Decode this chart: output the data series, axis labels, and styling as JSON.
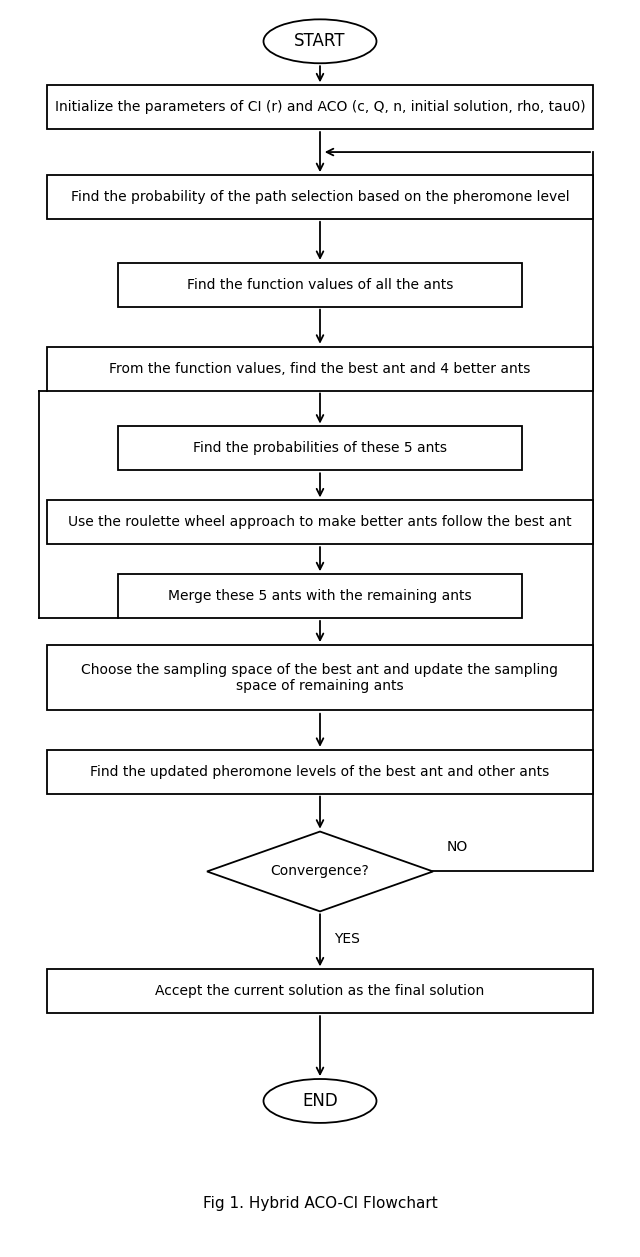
{
  "title": "Fig 1. Hybrid ACO-CI Flowchart",
  "bg_color": "#ffffff",
  "figsize": [
    6.4,
    12.57
  ],
  "dpi": 100,
  "nodes": [
    {
      "id": "start",
      "label": "START",
      "type": "ellipse"
    },
    {
      "id": "init",
      "label": "Initialize the parameters of CI (r) and ACO (c, Q, n, initial solution, rho, tau0)",
      "type": "rect_wide"
    },
    {
      "id": "prob",
      "label": "Find the probability of the path selection based on the pheromone level",
      "type": "rect_wide"
    },
    {
      "id": "func",
      "label": "Find the function values of all the ants",
      "type": "rect_mid"
    },
    {
      "id": "best",
      "label": "From the function values, find the best ant and 4 better ants",
      "type": "rect_wide"
    },
    {
      "id": "prob5",
      "label": "Find the probabilities of these 5 ants",
      "type": "rect_mid"
    },
    {
      "id": "roulette",
      "label": "Use the roulette wheel approach to make better ants follow the best ant",
      "type": "rect_wide"
    },
    {
      "id": "merge",
      "label": "Merge these 5 ants with the remaining ants",
      "type": "rect_mid"
    },
    {
      "id": "sample",
      "label": "Choose the sampling space of the best ant and update the sampling\nspace of remaining ants",
      "type": "rect_wide"
    },
    {
      "id": "pheromone",
      "label": "Find the updated pheromone levels of the best ant and other ants",
      "type": "rect_wide"
    },
    {
      "id": "converge",
      "label": "Convergence?",
      "type": "diamond"
    },
    {
      "id": "accept",
      "label": "Accept the current solution as the final solution",
      "type": "rect_wide"
    },
    {
      "id": "end",
      "label": "END",
      "type": "ellipse"
    }
  ]
}
